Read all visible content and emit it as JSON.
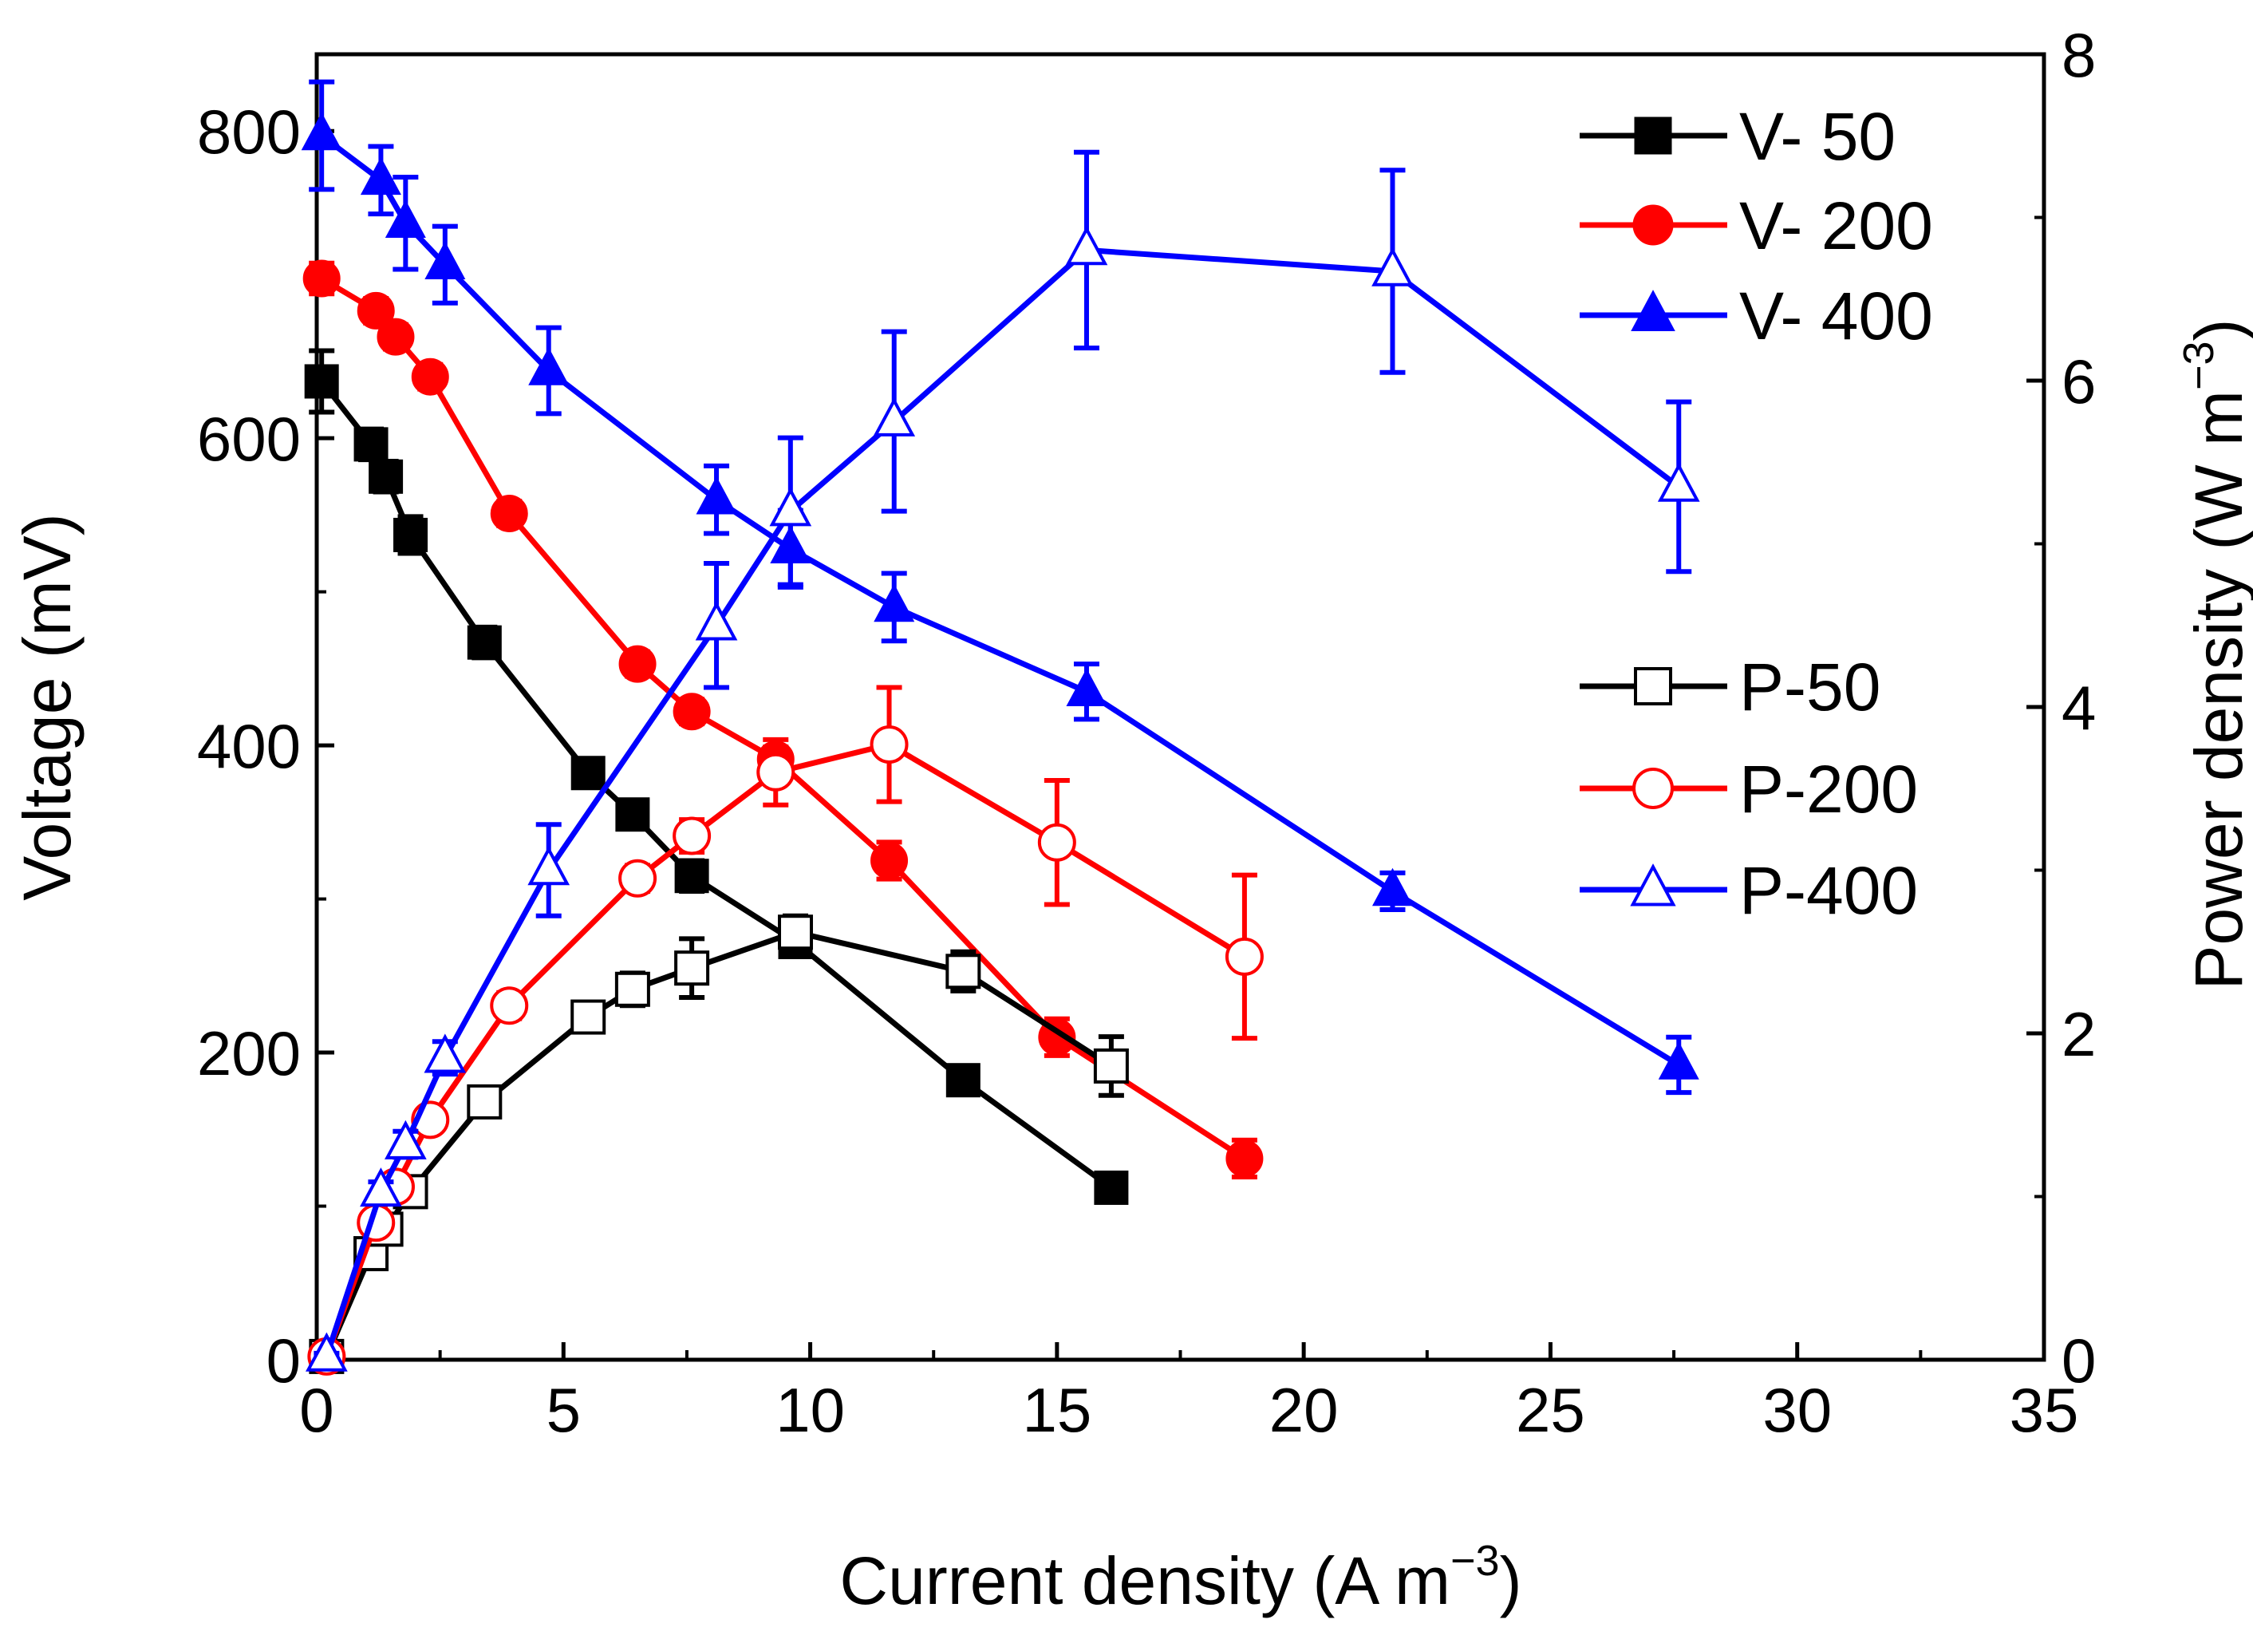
{
  "chart_data": {
    "type": "line",
    "xlabel": "Current density (A m",
    "xlabel_sup": "−3",
    "xlabel_end": ")",
    "ylabel": "Voltage (mV)",
    "y2label": "Power density (W m",
    "y2label_sup": "−3",
    "y2label_end": ")",
    "xlim": [
      0,
      35
    ],
    "ylim": [
      0,
      850
    ],
    "y2lim": [
      0,
      8
    ],
    "xticks": [
      0,
      5,
      10,
      15,
      20,
      25,
      30,
      35
    ],
    "yticks": [
      0,
      200,
      400,
      600,
      800
    ],
    "y2ticks": [
      0,
      2,
      4,
      6,
      8
    ],
    "grid": false,
    "legend_placement": "top-right (voltage series) and middle-right (power series)",
    "series": [
      {
        "name": "V- 50",
        "axis": "left",
        "color": "#000000",
        "marker": "square",
        "filled": true,
        "x": [
          0.1,
          1.1,
          1.4,
          1.9,
          3.4,
          5.5,
          6.4,
          7.6,
          9.7,
          13.1,
          16.1
        ],
        "y": [
          637,
          596,
          575,
          537,
          467,
          382,
          355,
          315,
          272,
          182,
          112
        ],
        "err": [
          20,
          10,
          10,
          12,
          10,
          8,
          8,
          10,
          8,
          8,
          8
        ]
      },
      {
        "name": "V- 200",
        "axis": "left",
        "color": "#ff0000",
        "marker": "circle",
        "filled": true,
        "x": [
          0.1,
          1.2,
          1.6,
          2.3,
          3.9,
          6.5,
          7.6,
          9.3,
          11.6,
          15.0,
          18.8
        ],
        "y": [
          704,
          683,
          666,
          640,
          551,
          453,
          422,
          391,
          325,
          210,
          131
        ],
        "err": [
          10,
          8,
          8,
          8,
          8,
          8,
          8,
          8,
          12,
          12,
          12
        ]
      },
      {
        "name": "V- 400",
        "axis": "left",
        "color": "#0000ff",
        "marker": "triangle",
        "filled": true,
        "x": [
          0.1,
          1.3,
          1.8,
          2.6,
          4.7,
          8.1,
          9.6,
          11.7,
          15.6,
          21.8,
          27.6
        ],
        "y": [
          797,
          768,
          740,
          713,
          644,
          560,
          528,
          490,
          435,
          305,
          192
        ],
        "err": [
          35,
          22,
          30,
          25,
          28,
          22,
          25,
          22,
          18,
          12,
          18
        ]
      },
      {
        "name": "P-50",
        "axis": "right",
        "color": "#000000",
        "marker": "square",
        "filled": false,
        "x": [
          0.2,
          1.1,
          1.4,
          1.9,
          3.4,
          5.5,
          6.4,
          7.6,
          9.7,
          13.1,
          16.1
        ],
        "y": [
          0.02,
          0.65,
          0.8,
          1.03,
          1.58,
          2.1,
          2.27,
          2.4,
          2.62,
          2.38,
          1.8
        ],
        "err": [
          0.02,
          0.05,
          0.05,
          0.05,
          0.08,
          0.08,
          0.1,
          0.18,
          0.1,
          0.12,
          0.18
        ]
      },
      {
        "name": "P-200",
        "axis": "right",
        "color": "#ff0000",
        "marker": "circle",
        "filled": false,
        "x": [
          0.2,
          1.2,
          1.6,
          2.3,
          3.9,
          6.5,
          7.6,
          9.3,
          11.6,
          15.0,
          18.8
        ],
        "y": [
          0.02,
          0.84,
          1.06,
          1.47,
          2.17,
          2.95,
          3.21,
          3.6,
          3.77,
          3.17,
          2.47
        ],
        "err": [
          0.02,
          0.05,
          0.05,
          0.06,
          0.08,
          0.08,
          0.1,
          0.2,
          0.35,
          0.38,
          0.5
        ]
      },
      {
        "name": "P-400",
        "axis": "right",
        "color": "#0000ff",
        "marker": "triangle",
        "filled": false,
        "x": [
          0.2,
          1.3,
          1.8,
          2.6,
          4.7,
          8.1,
          9.6,
          11.7,
          15.6,
          21.8,
          27.6
        ],
        "y": [
          0.02,
          1.03,
          1.32,
          1.85,
          3.0,
          4.5,
          5.2,
          5.75,
          6.8,
          6.67,
          5.35
        ],
        "err": [
          0.02,
          0.06,
          0.08,
          0.1,
          0.28,
          0.38,
          0.45,
          0.55,
          0.6,
          0.62,
          0.52
        ]
      }
    ]
  }
}
